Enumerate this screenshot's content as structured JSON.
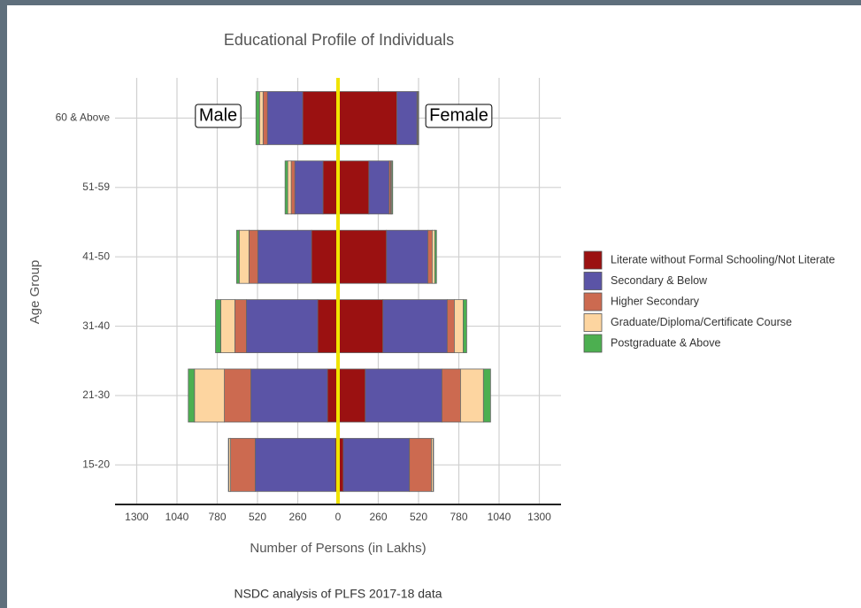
{
  "chart_data": {
    "type": "pyramid",
    "title": "Educational Profile of Individuals",
    "x_label": "Number of Persons (in Lakhs)",
    "y_label": "Age Group",
    "caption": "NSDC analysis of PLFS 2017-18 data",
    "annotations": [
      "Male",
      "Female"
    ],
    "categories": [
      "15-20",
      "21-30",
      "31-40",
      "41-50",
      "51-59",
      "60 & Above"
    ],
    "series": [
      {
        "name": "Literate without Formal Schooling/Not Literate",
        "color": "#9b1111",
        "male": [
          17,
          68,
          131,
          171,
          97,
          228
        ],
        "female": [
          34,
          176,
          290,
          313,
          199,
          380
        ]
      },
      {
        "name": "Secondary & Below",
        "color": "#5b54a6",
        "male": [
          518,
          495,
          461,
          347,
          182,
          228
        ],
        "female": [
          427,
          495,
          415,
          267,
          131,
          130
        ]
      },
      {
        "name": "Higher Secondary",
        "color": "#cc6a50",
        "male": [
          159,
          171,
          74,
          57,
          23,
          28
        ],
        "female": [
          142,
          120,
          46,
          28,
          11,
          5
        ]
      },
      {
        "name": "Graduate/Diploma/Certificate Course",
        "color": "#fdd5a0",
        "male": [
          11,
          193,
          91,
          63,
          23,
          23
        ],
        "female": [
          11,
          148,
          57,
          17,
          6,
          3
        ]
      },
      {
        "name": "Postgraduate & Above",
        "color": "#4caf50",
        "male": [
          3,
          40,
          34,
          17,
          17,
          23
        ],
        "female": [
          3,
          46,
          23,
          11,
          6,
          3
        ]
      }
    ],
    "xlim": [
      -1440,
      1440
    ],
    "xticks": [
      {
        "value": -1300,
        "label": "1300"
      },
      {
        "value": -1040,
        "label": "1040"
      },
      {
        "value": -780,
        "label": "780"
      },
      {
        "value": -520,
        "label": "520"
      },
      {
        "value": -260,
        "label": "260"
      },
      0,
      260,
      520,
      780,
      1040,
      1300
    ],
    "grid": true
  }
}
